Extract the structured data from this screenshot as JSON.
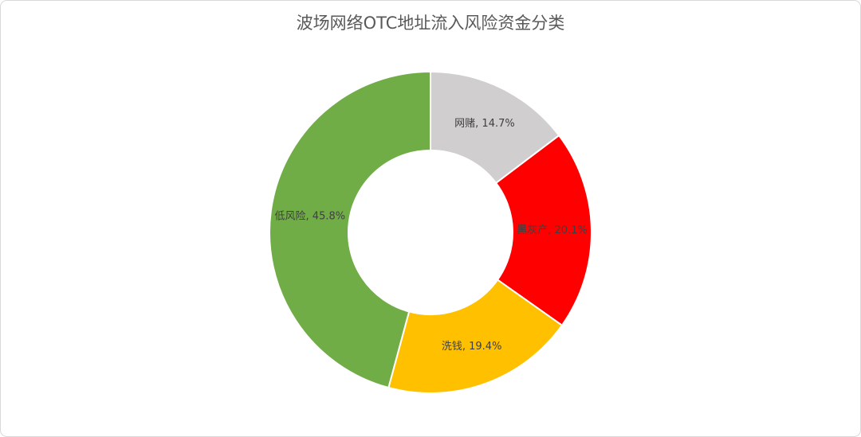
{
  "chart_data": {
    "type": "donut",
    "title": "波场网络OTC地址流入风险资金分类",
    "values": [
      14.7,
      20.1,
      19.4,
      45.8
    ],
    "value_labels": [
      "网赌, 14.7%",
      "黑灰产, 20.1%",
      "洗钱, 19.4%",
      "低风险, 45.8%"
    ],
    "colors": [
      "#d0cece",
      "#ff0000",
      "#ffc000",
      "#70ad47"
    ]
  }
}
